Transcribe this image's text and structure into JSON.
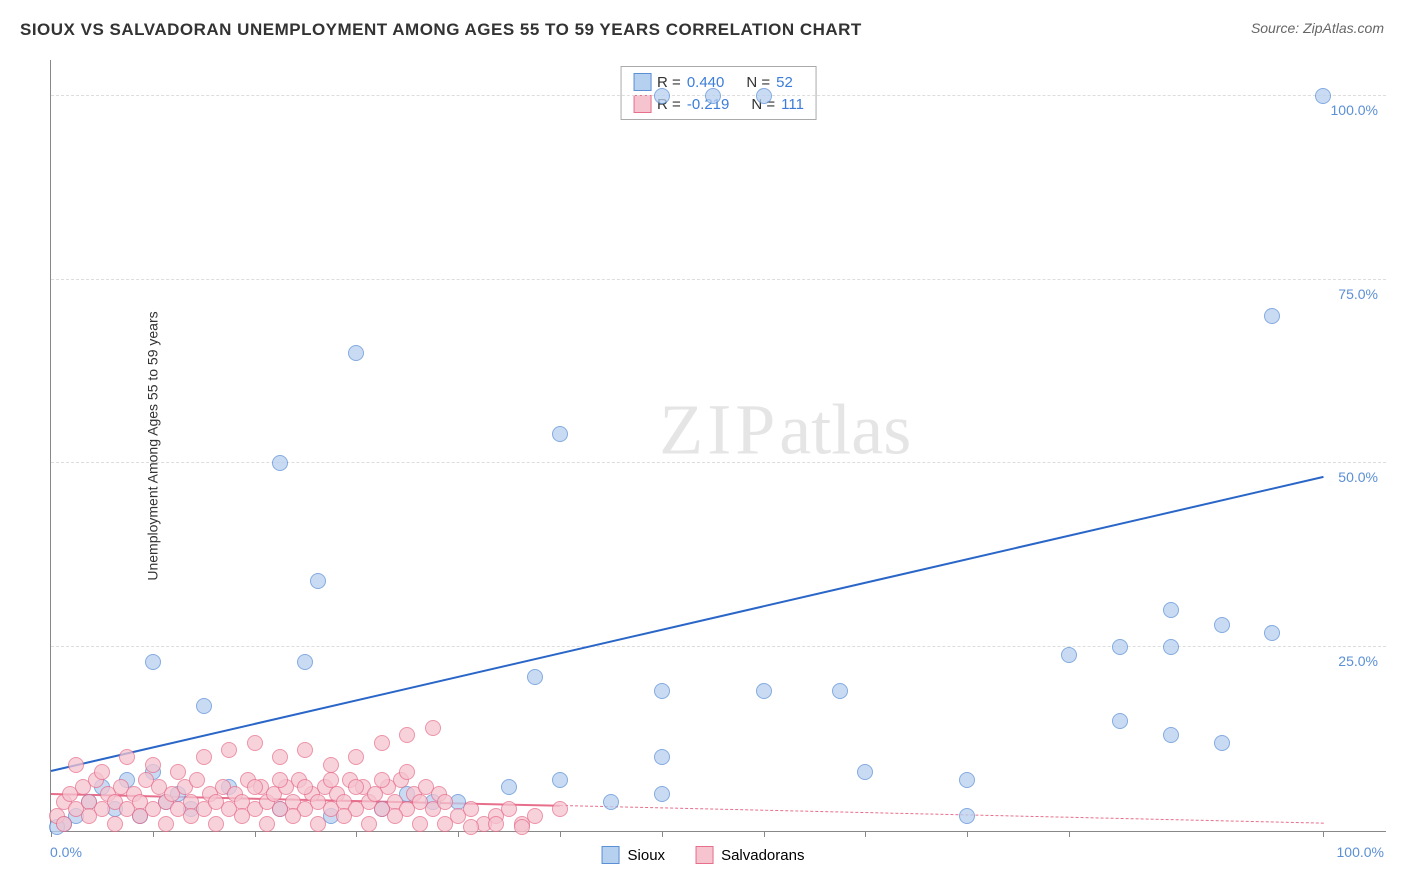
{
  "title": "SIOUX VS SALVADORAN UNEMPLOYMENT AMONG AGES 55 TO 59 YEARS CORRELATION CHART",
  "source": "Source: ZipAtlas.com",
  "ylabel": "Unemployment Among Ages 55 to 59 years",
  "watermark_zip": "ZIP",
  "watermark_atlas": "atlas",
  "chart": {
    "type": "scatter",
    "background_color": "#ffffff",
    "grid_color": "#dddddd",
    "axis_color": "#888888",
    "tick_label_color": "#5b8fd6",
    "tick_fontsize": 14,
    "title_fontsize": 17,
    "ylabel_fontsize": 14,
    "xlim": [
      0,
      105
    ],
    "ylim": [
      0,
      105
    ],
    "y_gridlines": [
      25,
      50,
      75,
      100
    ],
    "y_gridline_labels": [
      "25.0%",
      "50.0%",
      "75.0%",
      "100.0%"
    ],
    "x_tick_label_min": "0.0%",
    "x_tick_label_max": "100.0%",
    "x_tick_positions": [
      0,
      8,
      16,
      24,
      32,
      40,
      48,
      56,
      64,
      72,
      80,
      100
    ],
    "point_radius": 8,
    "series": [
      {
        "name": "Sioux",
        "fill": "#b6d0f0",
        "stroke": "#5b8fd6",
        "R": "0.440",
        "N": "52",
        "trend": {
          "y_at_x0": 8,
          "y_at_x100": 48,
          "color": "#2a66c8",
          "width": 2,
          "dashed": false,
          "extent_x": 100
        },
        "points": [
          [
            48,
            100
          ],
          [
            52,
            100
          ],
          [
            56,
            100
          ],
          [
            100,
            100
          ],
          [
            96,
            70
          ],
          [
            24,
            65
          ],
          [
            18,
            50
          ],
          [
            40,
            54
          ],
          [
            21,
            34
          ],
          [
            88,
            30
          ],
          [
            92,
            28
          ],
          [
            96,
            27
          ],
          [
            8,
            23
          ],
          [
            20,
            23
          ],
          [
            80,
            24
          ],
          [
            84,
            25
          ],
          [
            88,
            25
          ],
          [
            38,
            21
          ],
          [
            48,
            19
          ],
          [
            56,
            19
          ],
          [
            62,
            19
          ],
          [
            84,
            15
          ],
          [
            88,
            13
          ],
          [
            92,
            12
          ],
          [
            12,
            17
          ],
          [
            48,
            10
          ],
          [
            64,
            8
          ],
          [
            72,
            7
          ],
          [
            4,
            6
          ],
          [
            6,
            7
          ],
          [
            8,
            8
          ],
          [
            10,
            5
          ],
          [
            14,
            6
          ],
          [
            28,
            5
          ],
          [
            32,
            4
          ],
          [
            40,
            7
          ],
          [
            44,
            4
          ],
          [
            2,
            2
          ],
          [
            3,
            4
          ],
          [
            1,
            1
          ],
          [
            0.5,
            0.5
          ],
          [
            72,
            2
          ],
          [
            48,
            5
          ],
          [
            36,
            6
          ],
          [
            30,
            4
          ],
          [
            18,
            3
          ],
          [
            22,
            2
          ],
          [
            26,
            3
          ],
          [
            5,
            3
          ],
          [
            7,
            2
          ],
          [
            9,
            4
          ],
          [
            11,
            3
          ]
        ]
      },
      {
        "name": "Salvadorans",
        "fill": "#f5c4cf",
        "stroke": "#e76f8c",
        "R": "-0.219",
        "N": "111",
        "trend": {
          "y_at_x0": 5,
          "y_at_x100": 1,
          "color": "#e76f8c",
          "width": 1.5,
          "dashed_after_x": 40,
          "extent_x": 100
        },
        "points": [
          [
            1,
            4
          ],
          [
            1.5,
            5
          ],
          [
            2,
            3
          ],
          [
            2.5,
            6
          ],
          [
            3,
            4
          ],
          [
            3.5,
            7
          ],
          [
            4,
            3
          ],
          [
            4.5,
            5
          ],
          [
            5,
            4
          ],
          [
            5.5,
            6
          ],
          [
            6,
            3
          ],
          [
            6.5,
            5
          ],
          [
            7,
            4
          ],
          [
            7.5,
            7
          ],
          [
            8,
            3
          ],
          [
            8.5,
            6
          ],
          [
            9,
            4
          ],
          [
            9.5,
            5
          ],
          [
            10,
            3
          ],
          [
            10.5,
            6
          ],
          [
            11,
            4
          ],
          [
            11.5,
            7
          ],
          [
            12,
            3
          ],
          [
            12.5,
            5
          ],
          [
            13,
            4
          ],
          [
            13.5,
            6
          ],
          [
            14,
            3
          ],
          [
            14.5,
            5
          ],
          [
            15,
            4
          ],
          [
            15.5,
            7
          ],
          [
            16,
            3
          ],
          [
            16.5,
            6
          ],
          [
            17,
            4
          ],
          [
            17.5,
            5
          ],
          [
            18,
            3
          ],
          [
            18.5,
            6
          ],
          [
            19,
            4
          ],
          [
            19.5,
            7
          ],
          [
            20,
            3
          ],
          [
            20.5,
            5
          ],
          [
            21,
            4
          ],
          [
            21.5,
            6
          ],
          [
            22,
            3
          ],
          [
            22.5,
            5
          ],
          [
            23,
            4
          ],
          [
            23.5,
            7
          ],
          [
            24,
            3
          ],
          [
            24.5,
            6
          ],
          [
            25,
            4
          ],
          [
            25.5,
            5
          ],
          [
            26,
            3
          ],
          [
            26.5,
            6
          ],
          [
            27,
            4
          ],
          [
            27.5,
            7
          ],
          [
            28,
            3
          ],
          [
            28.5,
            5
          ],
          [
            29,
            4
          ],
          [
            29.5,
            6
          ],
          [
            30,
            3
          ],
          [
            30.5,
            5
          ],
          [
            31,
            4
          ],
          [
            32,
            2
          ],
          [
            33,
            3
          ],
          [
            34,
            1
          ],
          [
            35,
            2
          ],
          [
            36,
            3
          ],
          [
            37,
            1
          ],
          [
            38,
            2
          ],
          [
            40,
            3
          ],
          [
            12,
            10
          ],
          [
            14,
            11
          ],
          [
            16,
            12
          ],
          [
            18,
            10
          ],
          [
            20,
            11
          ],
          [
            22,
            9
          ],
          [
            24,
            10
          ],
          [
            26,
            12
          ],
          [
            28,
            13
          ],
          [
            8,
            9
          ],
          [
            10,
            8
          ],
          [
            6,
            10
          ],
          [
            4,
            8
          ],
          [
            2,
            9
          ],
          [
            0.5,
            2
          ],
          [
            1,
            1
          ],
          [
            3,
            2
          ],
          [
            5,
            1
          ],
          [
            7,
            2
          ],
          [
            9,
            1
          ],
          [
            11,
            2
          ],
          [
            13,
            1
          ],
          [
            15,
            2
          ],
          [
            17,
            1
          ],
          [
            19,
            2
          ],
          [
            21,
            1
          ],
          [
            23,
            2
          ],
          [
            25,
            1
          ],
          [
            27,
            2
          ],
          [
            29,
            1
          ],
          [
            31,
            1
          ],
          [
            33,
            0.5
          ],
          [
            35,
            1
          ],
          [
            37,
            0.5
          ],
          [
            30,
            14
          ],
          [
            28,
            8
          ],
          [
            26,
            7
          ],
          [
            24,
            6
          ],
          [
            22,
            7
          ],
          [
            20,
            6
          ],
          [
            18,
            7
          ],
          [
            16,
            6
          ]
        ]
      }
    ],
    "legend": {
      "position": "top-center",
      "border_color": "#aaaaaa",
      "background": "#ffffff",
      "label_R": "R =",
      "label_N": "N =",
      "value_color": "#3b7dd8"
    },
    "bottom_legend": {
      "items": [
        "Sioux",
        "Salvadorans"
      ]
    }
  }
}
